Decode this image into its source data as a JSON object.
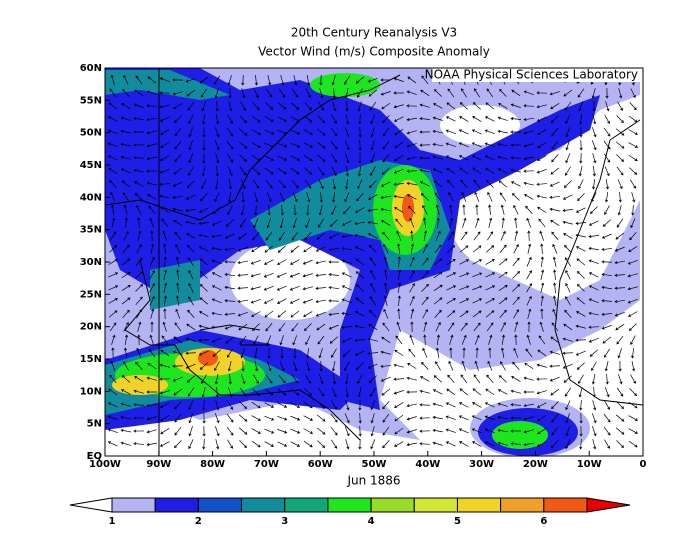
{
  "title": "20th Century Reanalysis V3",
  "subtitle": "Vector Wind (m/s) Composite Anomaly",
  "attribution": "NOAA Physical Sciences Laboratory",
  "x_label": "Jun 1886",
  "lon_ticks": [
    "100W",
    "90W",
    "80W",
    "70W",
    "60W",
    "50W",
    "40W",
    "30W",
    "20W",
    "10W",
    "0"
  ],
  "lat_ticks": [
    "EQ",
    "5N",
    "10N",
    "15N",
    "20N",
    "25N",
    "30N",
    "35N",
    "40N",
    "45N",
    "50N",
    "55N",
    "60N"
  ],
  "colorbar": {
    "labels": [
      "1",
      "2",
      "3",
      "4",
      "5",
      "6"
    ],
    "colors": [
      "#ffffff",
      "#b4b4f5",
      "#1e1ee6",
      "#1450c8",
      "#108c9c",
      "#10a878",
      "#1ee61e",
      "#96dc28",
      "#d2e632",
      "#f0d228",
      "#f0a028",
      "#f05a14",
      "#e60000"
    ]
  }
}
